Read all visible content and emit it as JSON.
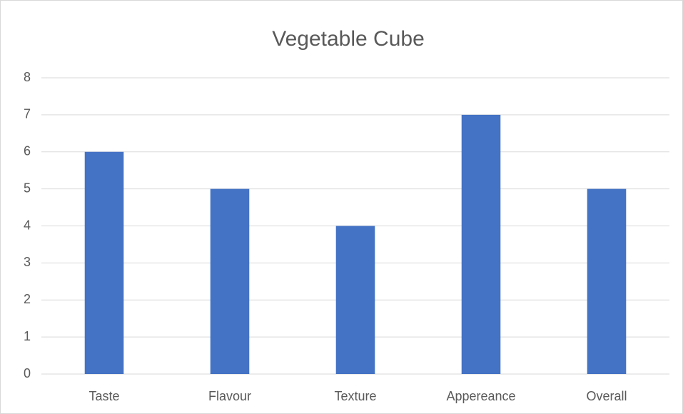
{
  "chart_data": {
    "type": "bar",
    "title": "Vegetable Cube",
    "categories": [
      "Taste",
      "Flavour",
      "Texture",
      "Appereance",
      "Overall"
    ],
    "values": [
      6,
      5,
      4,
      7,
      5
    ],
    "color": "#4472c4",
    "ylim": [
      0,
      8
    ],
    "yticks": [
      0,
      1,
      2,
      3,
      4,
      5,
      6,
      7,
      8
    ],
    "grid": true
  }
}
